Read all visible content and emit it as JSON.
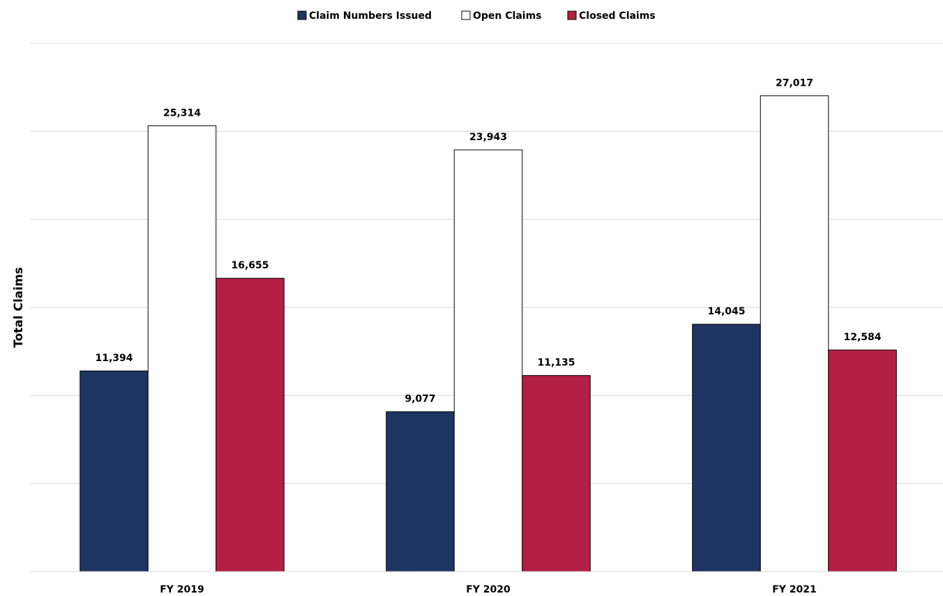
{
  "chart_data": {
    "type": "bar",
    "categories": [
      "FY 2019",
      "FY 2020",
      "FY 2021"
    ],
    "series": [
      {
        "name": "Claim Numbers Issued",
        "values": [
          11394,
          9077,
          14045
        ],
        "labels": [
          "11,394",
          "9,077",
          "14,045"
        ],
        "color": "#1e3461"
      },
      {
        "name": "Open Claims",
        "values": [
          25314,
          23943,
          27017
        ],
        "labels": [
          "25,314",
          "23,943",
          "27,017"
        ],
        "color": "#ffffff"
      },
      {
        "name": "Closed Claims",
        "values": [
          16655,
          11135,
          12584
        ],
        "labels": [
          "16,655",
          "11,135",
          "12,584"
        ],
        "color": "#b31f45"
      }
    ],
    "title": "",
    "xlabel": "",
    "ylabel": "Total Claims",
    "ylim": [
      0,
      30000
    ],
    "grid": true,
    "gridlines": [
      5000,
      10000,
      15000,
      20000,
      25000,
      30000
    ],
    "legend_position": "top-center",
    "outline_color": "#000000",
    "grid_color": "#d9d9d9"
  }
}
